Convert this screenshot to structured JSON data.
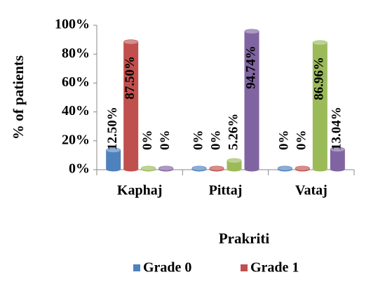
{
  "chart_data": {
    "type": "bar",
    "y_label": "% of patients",
    "x_label": "Prakriti",
    "categories": [
      "Kaphaj",
      "Pittaj",
      "Vataj"
    ],
    "series": [
      {
        "name": "Grade 0",
        "color": "#4f81bd",
        "values": [
          12.5,
          0,
          0
        ],
        "value_labels": [
          "12.50%",
          "0%",
          "0%"
        ]
      },
      {
        "name": "Grade 1",
        "color": "#c0504d",
        "values": [
          87.5,
          0,
          0
        ],
        "value_labels": [
          "87.50%",
          "0%",
          "0%"
        ]
      },
      {
        "color": "#9bbb59",
        "values": [
          0,
          5.26,
          86.96
        ],
        "value_labels": [
          "0%",
          "5.26%",
          "86.96%"
        ]
      },
      {
        "color": "#8064a2",
        "values": [
          0,
          94.74,
          13.04
        ],
        "value_labels": [
          "0%",
          "94.74%",
          "13.04%"
        ]
      }
    ],
    "ylim": [
      0,
      100
    ],
    "yticks": [
      {
        "value": 0,
        "label": "0%"
      },
      {
        "value": 20,
        "label": "20%"
      },
      {
        "value": 40,
        "label": "40%"
      },
      {
        "value": 60,
        "label": "60%"
      },
      {
        "value": 80,
        "label": "80%"
      },
      {
        "value": 100,
        "label": "100%"
      }
    ]
  }
}
